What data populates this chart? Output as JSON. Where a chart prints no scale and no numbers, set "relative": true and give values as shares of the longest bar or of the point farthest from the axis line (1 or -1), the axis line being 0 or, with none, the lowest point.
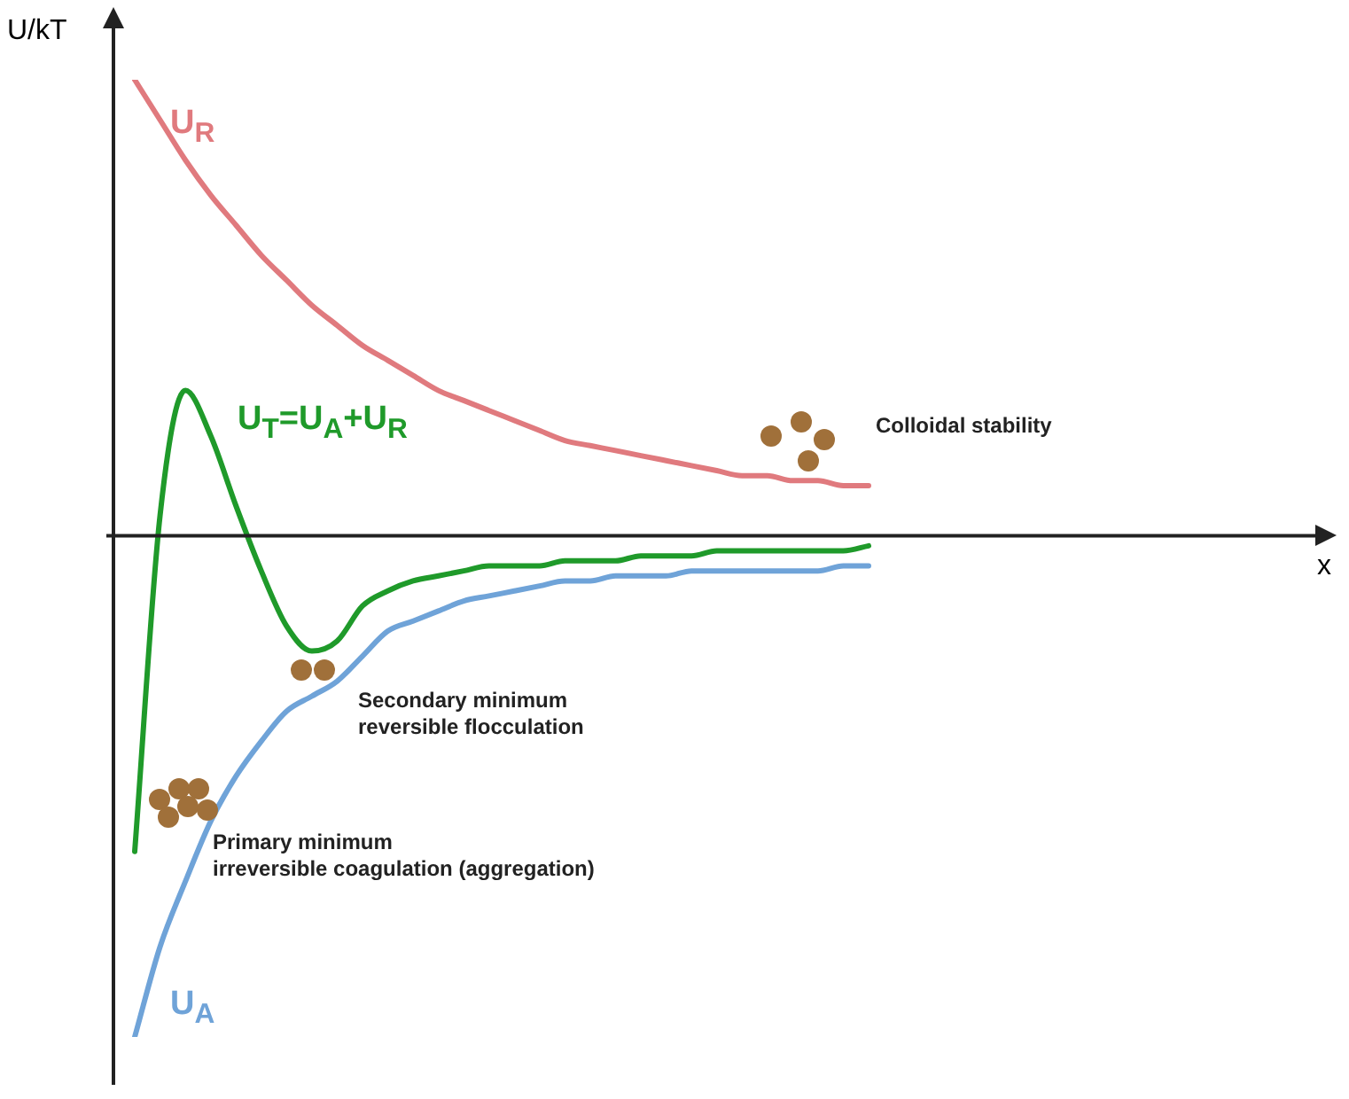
{
  "chart_data": {
    "type": "line",
    "relative": true,
    "ylabel": "U/kT",
    "marker": "none",
    "legend": false,
    "categories": [
      null,
      null,
      null,
      null,
      null,
      null,
      null,
      null,
      null,
      null,
      null,
      null,
      null,
      null,
      null,
      null,
      null,
      null,
      null,
      null,
      null,
      null,
      null,
      null,
      null,
      null,
      null,
      null,
      null,
      null
    ],
    "series": [
      {
        "name": "U$_{R}$",
        "color": "#e07a7e",
        "values": [
          0.91,
          0.83,
          0.75,
          0.68,
          0.62,
          0.56,
          0.51,
          0.46,
          0.42,
          0.38,
          0.35,
          0.32,
          0.29,
          0.27,
          0.25,
          0.23,
          0.21,
          0.19,
          0.18,
          0.17,
          0.16,
          0.15,
          0.14,
          0.13,
          0.12,
          0.12,
          0.11,
          0.11,
          0.1,
          0.1
        ]
      },
      {
        "name": "U$_{A}$",
        "color": "#6fa3d8",
        "values": [
          -1,
          -0.82,
          -0.69,
          -0.57,
          -0.48,
          -0.41,
          -0.35,
          -0.32,
          -0.29,
          -0.24,
          -0.19,
          -0.17,
          -0.15,
          -0.13,
          -0.12,
          -0.11,
          -0.1,
          -0.09,
          -0.09,
          -0.08,
          -0.08,
          -0.08,
          -0.07,
          -0.07,
          -0.07,
          -0.07,
          -0.07,
          -0.07,
          -0.06,
          -0.06
        ]
      },
      {
        "name": "U$_{T}$=U$_{A}$+U$_{R}$",
        "color": "#1f9a2a",
        "values": [
          -0.63,
          0.04,
          0.29,
          0.2,
          0.06,
          -0.07,
          -0.18,
          -0.23,
          -0.21,
          -0.14,
          -0.11,
          -0.09,
          -0.08,
          -0.07,
          -0.06,
          -0.06,
          -0.06,
          -0.05,
          -0.05,
          -0.05,
          -0.04,
          -0.04,
          -0.04,
          -0.03,
          -0.03,
          -0.03,
          -0.03,
          -0.03,
          -0.03,
          -0.02
        ]
      }
    ],
    "annotations": [
      "x",
      "Colloidal stability",
      "Secondary minimum\nreversible flocculation",
      "Primary minimum\nirreversible coagulation (aggregation)"
    ]
  }
}
